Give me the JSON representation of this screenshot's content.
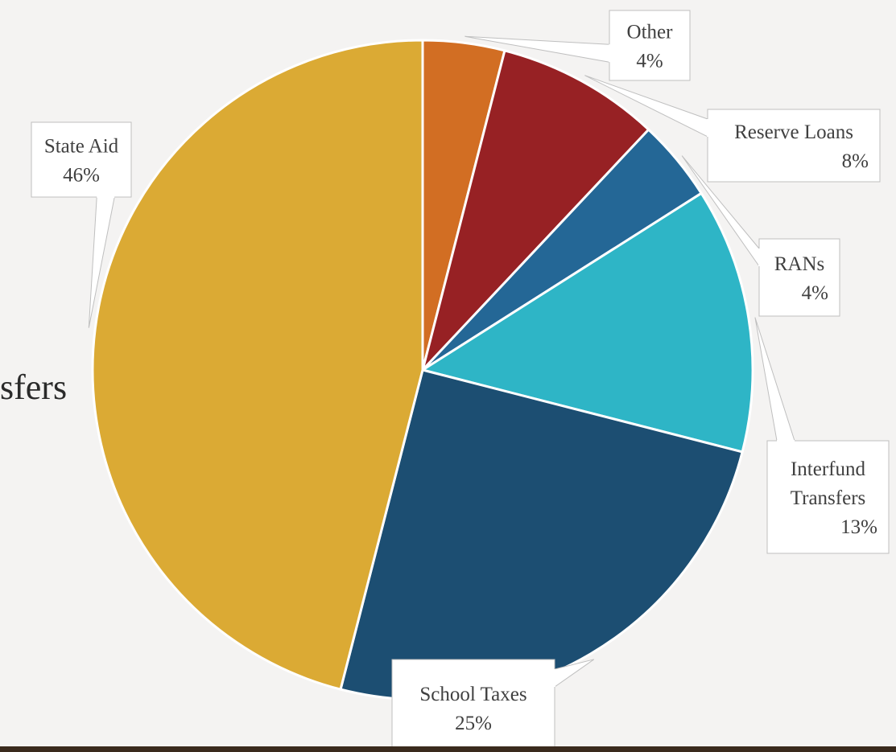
{
  "slide": {
    "partial_text": "sfers"
  },
  "chart_data": {
    "type": "pie",
    "start_angle_deg": 0,
    "clockwise": true,
    "slices": [
      {
        "label": "Other",
        "percent_label": "4%",
        "value": 4,
        "color": "#D26E23"
      },
      {
        "label": "Reserve Loans",
        "percent_label": "8%",
        "value": 8,
        "color": "#972124"
      },
      {
        "label": "RANs",
        "percent_label": "4%",
        "value": 4,
        "color": "#246796"
      },
      {
        "label": "Interfund Transfers",
        "percent_label": "13%",
        "value": 13,
        "color": "#2EB5C6"
      },
      {
        "label": "School Taxes",
        "percent_label": "25%",
        "value": 25,
        "color": "#1C4E72"
      },
      {
        "label": "State Aid",
        "percent_label": "46%",
        "value": 46,
        "color": "#DBAA34"
      }
    ],
    "data_labels": "callouts"
  }
}
